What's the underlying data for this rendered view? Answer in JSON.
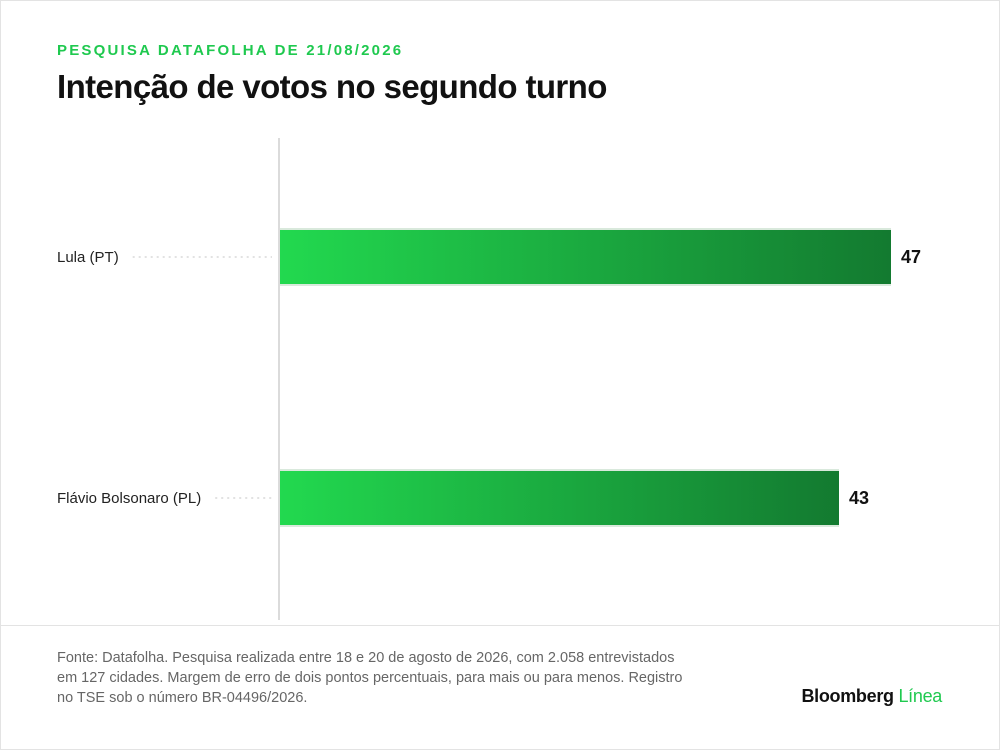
{
  "header": {
    "kicker": "PESQUISA DATAFOLHA DE 21/08/2026",
    "title": "Intenção de votos no segundo turno"
  },
  "chart_data": {
    "type": "bar",
    "orientation": "horizontal",
    "categories": [
      "Lula (PT)",
      "Flávio Bolsonaro (PL)"
    ],
    "values": [
      47,
      43
    ],
    "xlim": [
      0,
      50
    ],
    "grid": false,
    "colors": {
      "bar_start": "#22d94f",
      "bar_end": "#137a30"
    }
  },
  "footer": {
    "source": "Fonte: Datafolha. Pesquisa realizada entre 18 e 20 de agosto de 2026, com 2.058 entrevistados em 127 cidades. Margem de erro de dois pontos percentuais, para mais ou para menos. Registro no TSE sob o número BR-04496/2026.",
    "brand_main": "Bloomberg",
    "brand_accent": "Línea"
  }
}
